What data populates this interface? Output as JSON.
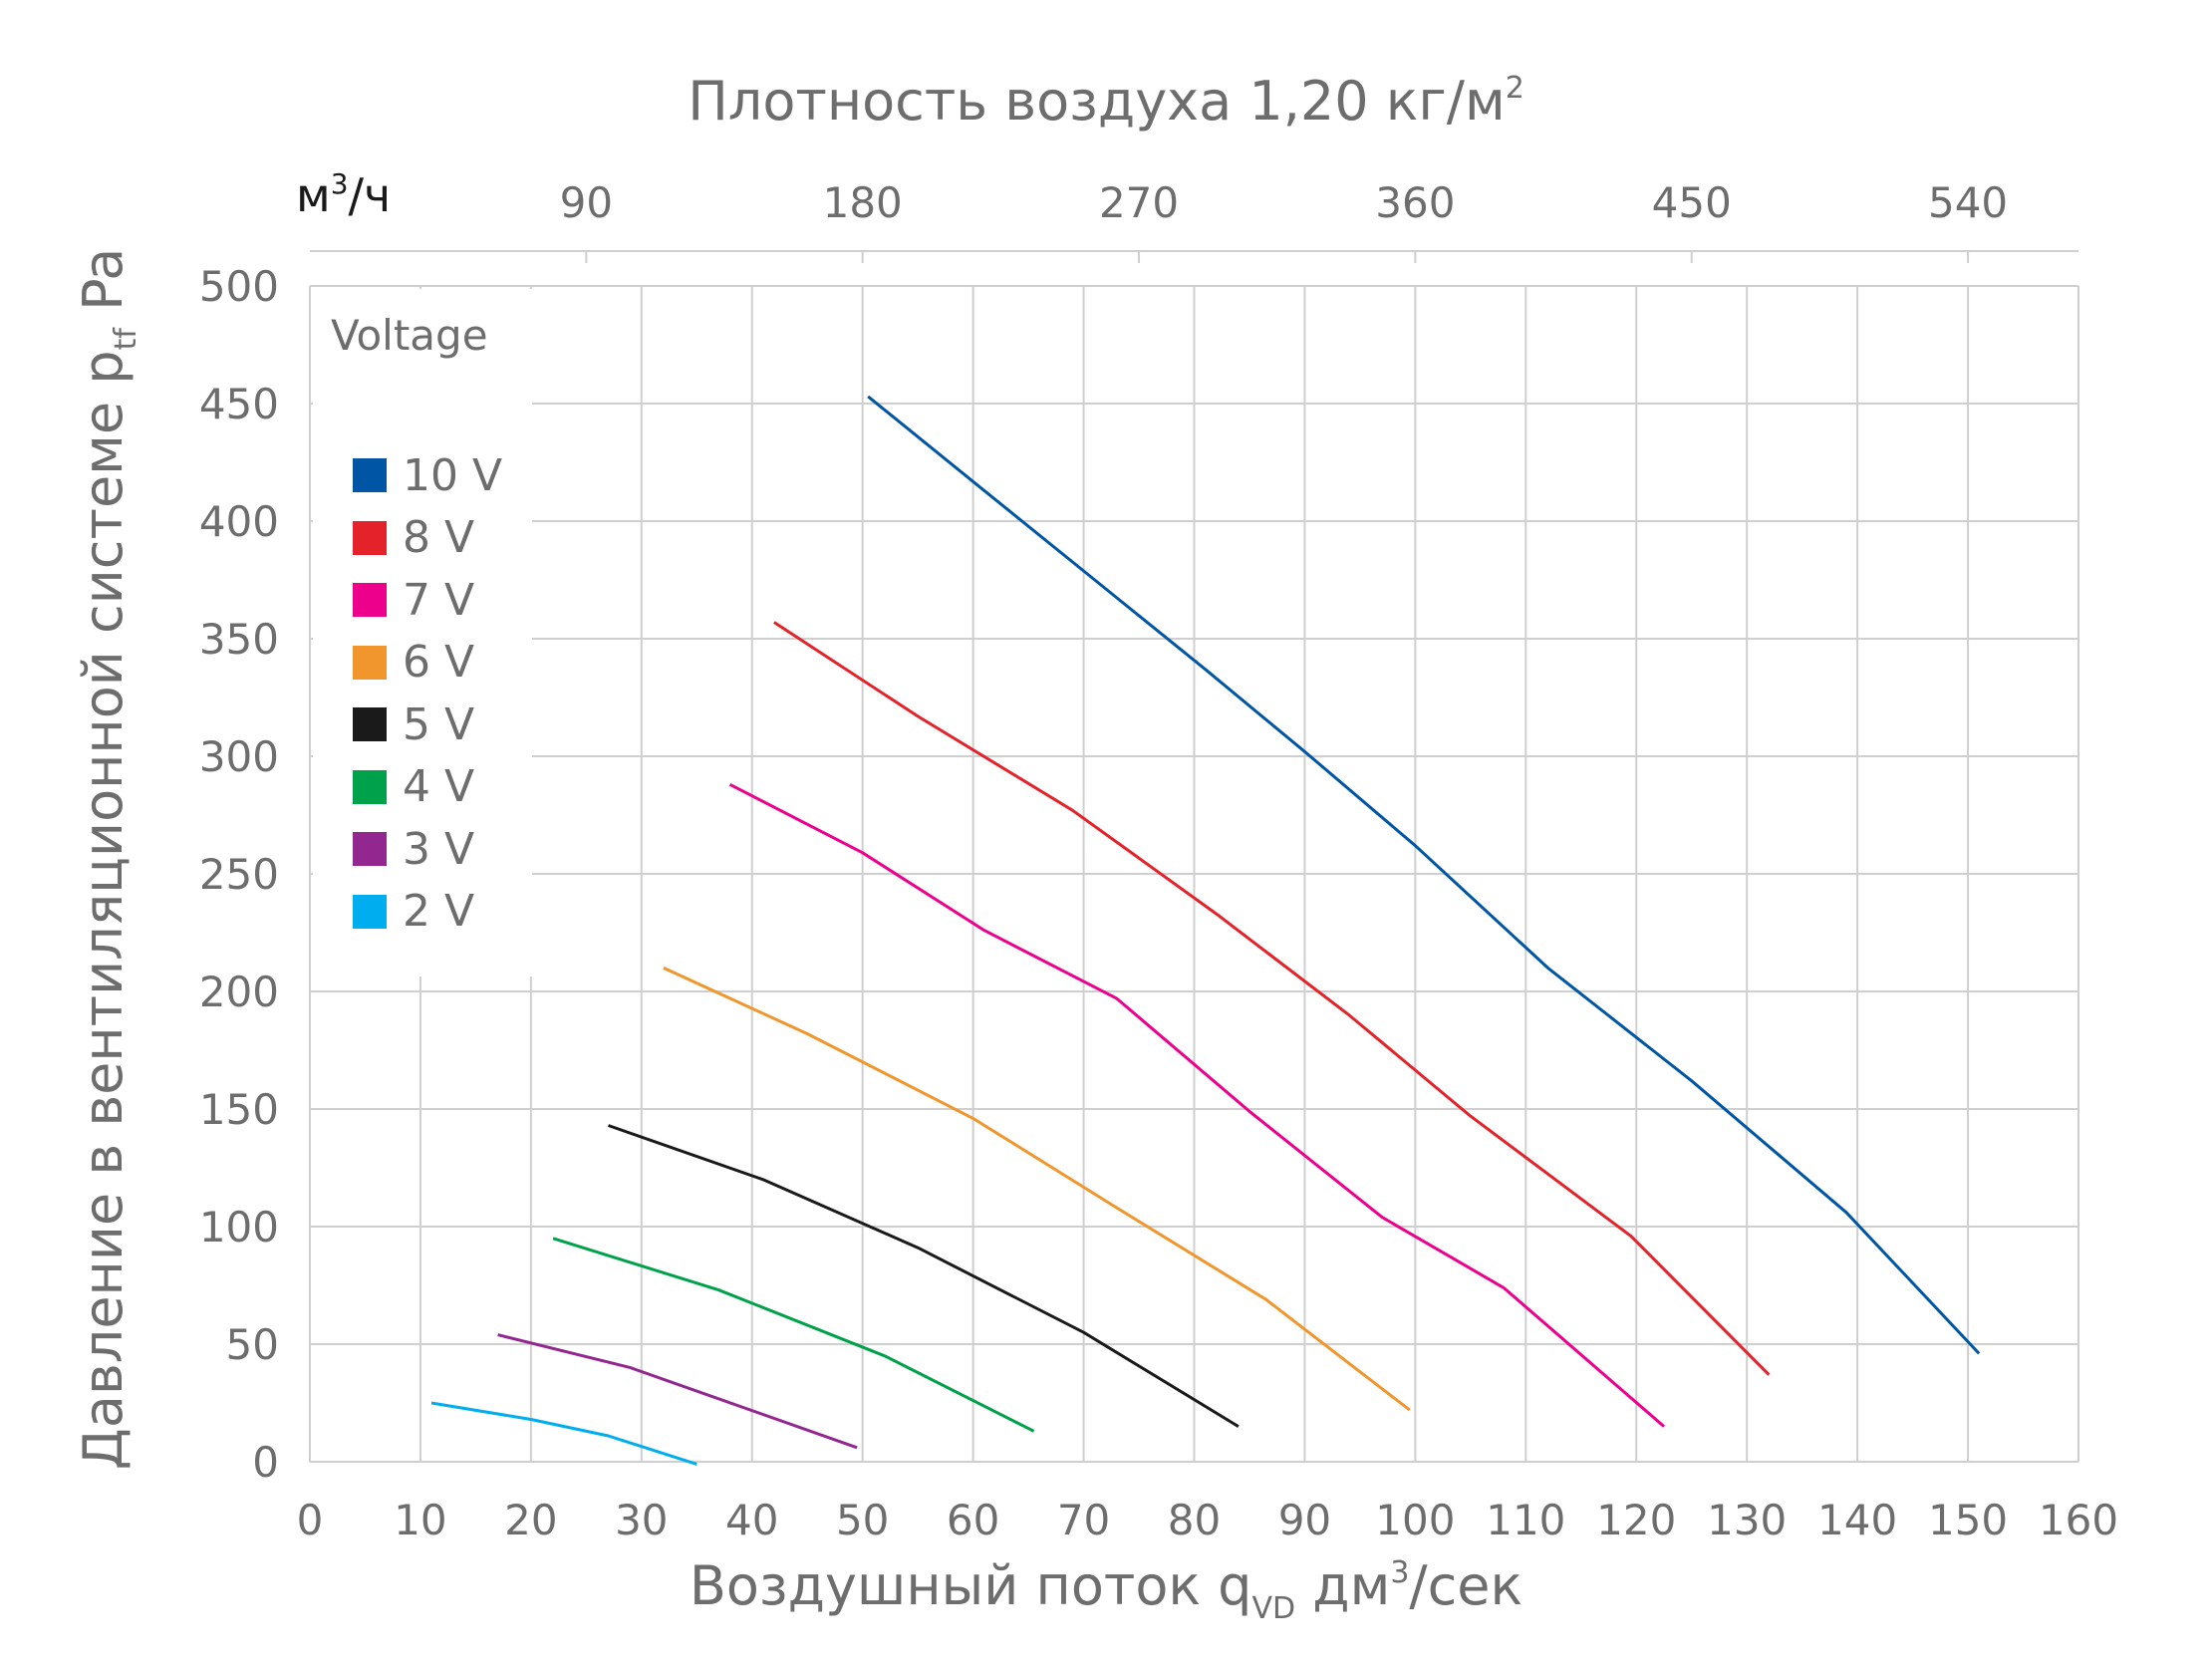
{
  "chart_data": {
    "type": "line",
    "title": "Плотность воздуха 1,20 кг/м",
    "title_sup": "2",
    "secondary_x_axis": {
      "unit_label": "м",
      "unit_sup": "3",
      "unit_suffix": "/ч",
      "ticks": [
        "90",
        "180",
        "270",
        "360",
        "450",
        "540"
      ],
      "values": [
        90,
        180,
        270,
        360,
        450,
        540
      ]
    },
    "xlabel": {
      "main": "Воздушный поток q",
      "sub": "VD",
      "unit": " дм",
      "unit_sup": "3",
      "unit_suffix": "/сек"
    },
    "ylabel": {
      "main": "Давление в вентиляционной системе p",
      "sub": "tf",
      "unit": " Pa"
    },
    "xlim": [
      0,
      160
    ],
    "ylim": [
      0,
      500
    ],
    "x_ticks": [
      "0",
      "10",
      "20",
      "30",
      "40",
      "50",
      "60",
      "70",
      "80",
      "90",
      "100",
      "110",
      "120",
      "130",
      "140",
      "150",
      "160"
    ],
    "y_ticks": [
      "0",
      "50",
      "100",
      "150",
      "200",
      "250",
      "300",
      "350",
      "400",
      "450",
      "500"
    ],
    "grid": true,
    "legend": {
      "title": "Voltage",
      "placement": "top-left"
    },
    "series": [
      {
        "name": "10 V",
        "color": "#0055a5",
        "points": [
          [
            50.5,
            453
          ],
          [
            61,
            413
          ],
          [
            71,
            375
          ],
          [
            81,
            337
          ],
          [
            90,
            302
          ],
          [
            100,
            262
          ],
          [
            112,
            210
          ],
          [
            125,
            162
          ],
          [
            139,
            106
          ],
          [
            151,
            46
          ]
        ]
      },
      {
        "name": "8 V",
        "color": "#e42229",
        "points": [
          [
            42,
            357
          ],
          [
            55,
            317
          ],
          [
            69,
            277
          ],
          [
            82,
            233
          ],
          [
            94,
            190
          ],
          [
            105,
            147
          ],
          [
            119.5,
            96
          ],
          [
            132,
            37
          ]
        ]
      },
      {
        "name": "7 V",
        "color": "#ec008c",
        "points": [
          [
            38,
            288
          ],
          [
            50,
            259
          ],
          [
            61,
            226
          ],
          [
            73,
            197
          ],
          [
            85,
            149
          ],
          [
            97,
            104
          ],
          [
            108,
            74
          ],
          [
            122.5,
            15
          ]
        ]
      },
      {
        "name": "6 V",
        "color": "#f0962d",
        "points": [
          [
            32,
            210
          ],
          [
            45,
            182
          ],
          [
            60,
            146
          ],
          [
            73,
            108
          ],
          [
            86.5,
            69
          ],
          [
            99.5,
            22
          ]
        ]
      },
      {
        "name": "5 V",
        "color": "#1a1a1a",
        "points": [
          [
            27,
            143
          ],
          [
            41,
            120
          ],
          [
            55,
            91
          ],
          [
            70,
            55
          ],
          [
            84,
            15
          ]
        ]
      },
      {
        "name": "4 V",
        "color": "#00a14b",
        "points": [
          [
            22,
            95
          ],
          [
            37,
            73
          ],
          [
            52,
            45
          ],
          [
            65.5,
            13
          ]
        ]
      },
      {
        "name": "3 V",
        "color": "#92278f",
        "points": [
          [
            17,
            54
          ],
          [
            29,
            40
          ],
          [
            49.5,
            6
          ]
        ]
      },
      {
        "name": "2 V",
        "color": "#00aeef",
        "points": [
          [
            11,
            25
          ],
          [
            20,
            18
          ],
          [
            27,
            11
          ],
          [
            35,
            -1
          ]
        ]
      }
    ]
  }
}
